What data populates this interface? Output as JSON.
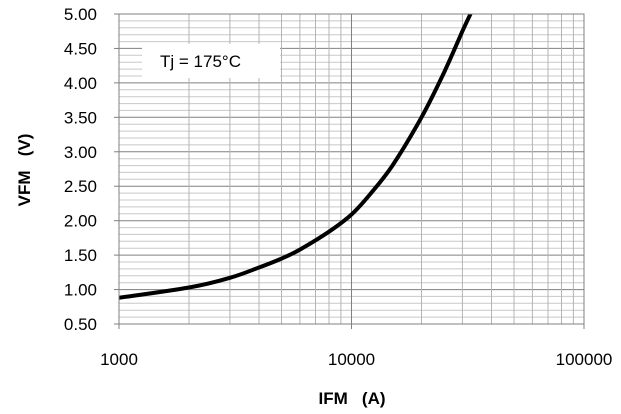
{
  "chart_data": {
    "type": "line",
    "title": "",
    "xlabel": "IFM   (A)",
    "ylabel": "VFM   (V)",
    "x_scale": "log",
    "xlim": [
      1000,
      100000
    ],
    "ylim": [
      0.5,
      5.0
    ],
    "x_ticks": [
      "1000",
      "10000",
      "100000"
    ],
    "y_ticks": [
      "0.50",
      "1.00",
      "1.50",
      "2.00",
      "2.50",
      "3.00",
      "3.50",
      "4.00",
      "4.50",
      "5.00"
    ],
    "grid": true,
    "annotation": "Tj = 175°C",
    "line_color": "#000000",
    "series": [
      {
        "x": [
          1000,
          2000,
          3000,
          4000,
          5000,
          6000,
          8000,
          10000,
          12000,
          15000,
          20000,
          25000,
          30000,
          33000
        ],
        "y": [
          0.88,
          1.03,
          1.17,
          1.32,
          1.45,
          1.58,
          1.84,
          2.09,
          2.38,
          2.8,
          3.5,
          4.15,
          4.75,
          5.05
        ]
      }
    ]
  }
}
